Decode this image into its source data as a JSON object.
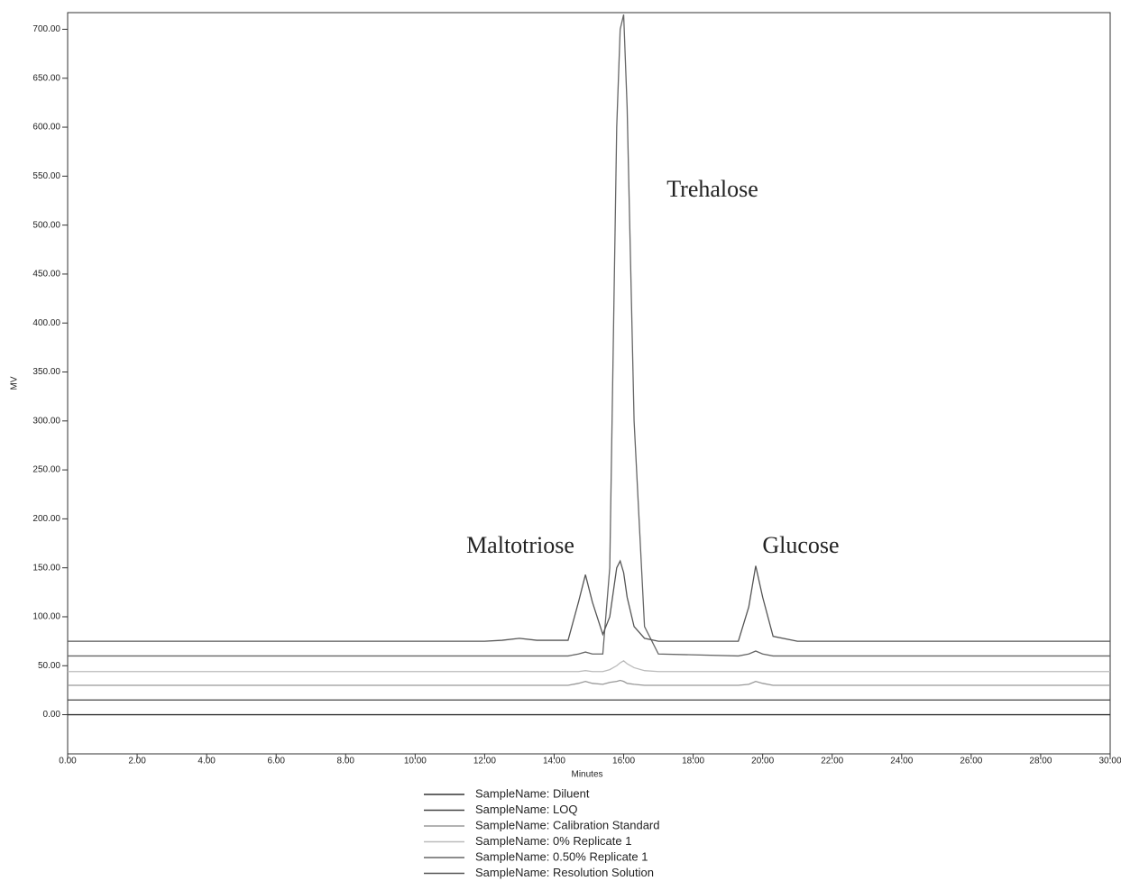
{
  "chart_data": {
    "type": "line",
    "x_label": "Minutes",
    "y_label": "MV",
    "annotations": [
      "Trehalose",
      "Maltotriose",
      "Glucose"
    ],
    "x": [
      0,
      12,
      12.5,
      13,
      13.5,
      14.4,
      14.7,
      14.9,
      15.1,
      15.4,
      15.6,
      15.8,
      15.9,
      16.0,
      16.1,
      16.3,
      16.6,
      17,
      19.3,
      19.6,
      19.8,
      20.0,
      20.3,
      21,
      30
    ],
    "series": [
      {
        "name": "SampleName: Diluent",
        "color": "#333333",
        "values": [
          0,
          0,
          0,
          0,
          0,
          0,
          0,
          0,
          0,
          0,
          0,
          0,
          0,
          0,
          0,
          0,
          0,
          0,
          0,
          0,
          0,
          0,
          0,
          0,
          0
        ]
      },
      {
        "name": "SampleName: LOQ",
        "color": "#444444",
        "values": [
          15,
          15,
          15,
          15,
          15,
          15,
          15,
          15,
          15,
          15,
          15,
          15,
          15,
          15,
          15,
          15,
          15,
          15,
          15,
          15,
          15,
          15,
          15,
          15,
          15
        ]
      },
      {
        "name": "SampleName: Calibration Standard",
        "color": "#999999",
        "values": [
          30,
          30,
          30,
          30,
          30,
          30,
          32,
          34,
          32,
          31,
          33,
          34,
          35,
          34,
          32,
          31,
          30,
          30,
          30,
          31,
          34,
          32,
          30,
          30,
          30
        ]
      },
      {
        "name": "SampleName: 0% Replicate 1",
        "color": "#bbbbbb",
        "values": [
          44,
          44,
          44,
          44,
          44,
          44,
          44,
          45,
          44,
          44,
          46,
          50,
          53,
          55,
          52,
          48,
          45,
          44,
          44,
          44,
          44,
          44,
          44,
          44,
          44
        ]
      },
      {
        "name": "SampleName: 0.50% Replicate 1",
        "color": "#666666",
        "values": [
          60,
          60,
          60,
          60,
          60,
          60,
          62,
          64,
          62,
          62,
          150,
          600,
          700,
          715,
          620,
          300,
          90,
          62,
          60,
          62,
          65,
          62,
          60,
          60,
          60
        ]
      },
      {
        "name": "SampleName: Resolution Solution",
        "color": "#555555",
        "values": [
          75,
          75,
          76,
          78,
          76,
          76,
          115,
          143,
          115,
          82,
          100,
          150,
          157,
          145,
          120,
          90,
          78,
          75,
          75,
          110,
          152,
          120,
          80,
          75,
          75
        ]
      }
    ],
    "xlim": [
      0,
      30
    ],
    "xticks": [
      {
        "value": 0,
        "label": "0.00"
      },
      {
        "value": 2,
        "label": "2.00"
      },
      {
        "value": 4,
        "label": "4.00"
      },
      {
        "value": 6,
        "label": "6.00"
      },
      {
        "value": 8,
        "label": "8.00"
      },
      {
        "value": 10,
        "label": "10.00"
      },
      {
        "value": 12,
        "label": "12.00"
      },
      {
        "value": 14,
        "label": "14.00"
      },
      {
        "value": 16,
        "label": "16.00"
      },
      {
        "value": 18,
        "label": "18.00"
      },
      {
        "value": 20,
        "label": "20.00"
      },
      {
        "value": 22,
        "label": "22.00"
      },
      {
        "value": 24,
        "label": "24.00"
      },
      {
        "value": 26,
        "label": "26.00"
      },
      {
        "value": 28,
        "label": "28.00"
      },
      {
        "value": 30,
        "label": "30.00"
      }
    ],
    "ylim": [
      -40,
      717
    ],
    "yticks": [
      {
        "value": 0,
        "label": "0.00"
      },
      {
        "value": 50,
        "label": "50.00"
      },
      {
        "value": 100,
        "label": "100.00"
      },
      {
        "value": 150,
        "label": "150.00"
      },
      {
        "value": 200,
        "label": "200.00"
      },
      {
        "value": 250,
        "label": "250.00"
      },
      {
        "value": 300,
        "label": "300.00"
      },
      {
        "value": 350,
        "label": "350.00"
      },
      {
        "value": 400,
        "label": "400.00"
      },
      {
        "value": 450,
        "label": "450.00"
      },
      {
        "value": 500,
        "label": "500.00"
      },
      {
        "value": 550,
        "label": "550.00"
      },
      {
        "value": 600,
        "label": "600.00"
      },
      {
        "value": 650,
        "label": "650.00"
      },
      {
        "value": 700,
        "label": "700.00"
      }
    ]
  }
}
